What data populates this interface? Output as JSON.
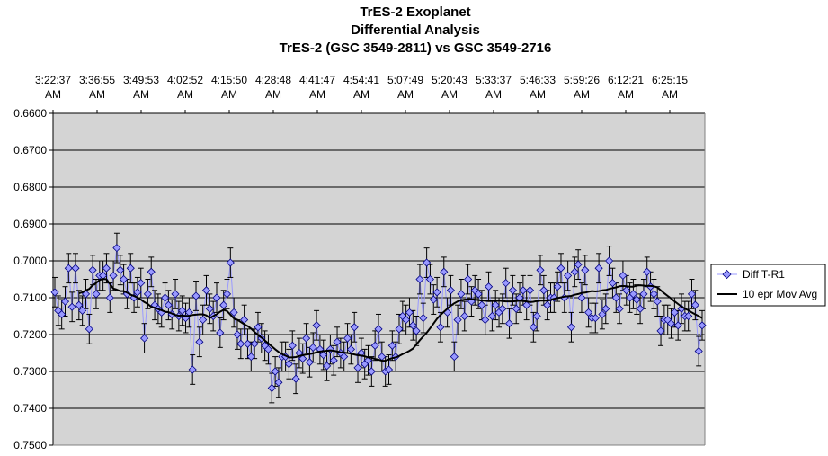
{
  "chart_data": {
    "type": "line",
    "title": [
      "TrES-2  Exoplanet",
      "Differential Analysis",
      "TrES-2 (GSC 3549-2811) vs GSC 3549-2716"
    ],
    "xlabel": "",
    "ylabel": "",
    "x_ticks": [
      [
        "3:22:37",
        "AM"
      ],
      [
        "3:36:55",
        "AM"
      ],
      [
        "3:49:53",
        "AM"
      ],
      [
        "4:02:52",
        "AM"
      ],
      [
        "4:15:50",
        "AM"
      ],
      [
        "4:28:48",
        "AM"
      ],
      [
        "4:41:47",
        "AM"
      ],
      [
        "4:54:41",
        "AM"
      ],
      [
        "5:07:49",
        "AM"
      ],
      [
        "5:20:43",
        "AM"
      ],
      [
        "5:33:37",
        "AM"
      ],
      [
        "5:46:33",
        "AM"
      ],
      [
        "5:59:26",
        "AM"
      ],
      [
        "6:12:21",
        "AM"
      ],
      [
        "6:25:15",
        "AM"
      ]
    ],
    "y_ticks": [
      "0.6600",
      "0.6700",
      "0.6800",
      "0.6900",
      "0.7000",
      "0.7100",
      "0.7200",
      "0.7300",
      "0.7400",
      "0.7500"
    ],
    "ylim": [
      0.66,
      0.75
    ],
    "y_inverted": true,
    "grid": true,
    "legend_position": "right",
    "error_bar": 0.004,
    "series": [
      {
        "name": "Diff T-R1",
        "marker": "diamond",
        "color": "#9999ff",
        "values": [
          0.7085,
          0.7135,
          0.7145,
          0.711,
          0.702,
          0.7125,
          0.702,
          0.712,
          0.7135,
          0.709,
          0.7185,
          0.7025,
          0.709,
          0.704,
          0.704,
          0.702,
          0.71,
          0.704,
          0.6965,
          0.7025,
          0.705,
          0.709,
          0.702,
          0.71,
          0.7085,
          0.706,
          0.721,
          0.709,
          0.703,
          0.712,
          0.713,
          0.714,
          0.71,
          0.712,
          0.7145,
          0.709,
          0.715,
          0.7135,
          0.7155,
          0.714,
          0.7295,
          0.7095,
          0.722,
          0.716,
          0.708,
          0.713,
          0.715,
          0.71,
          0.7195,
          0.712,
          0.709,
          0.7005,
          0.714,
          0.72,
          0.7225,
          0.716,
          0.7225,
          0.726,
          0.7225,
          0.718,
          0.721,
          0.723,
          0.724,
          0.7345,
          0.73,
          0.733,
          0.726,
          0.726,
          0.728,
          0.723,
          0.732,
          0.725,
          0.7265,
          0.721,
          0.7275,
          0.7235,
          0.7175,
          0.724,
          0.7255,
          0.7285,
          0.724,
          0.727,
          0.722,
          0.725,
          0.726,
          0.721,
          0.724,
          0.718,
          0.729,
          0.725,
          0.728,
          0.727,
          0.73,
          0.723,
          0.7185,
          0.726,
          0.73,
          0.7295,
          0.723,
          0.726,
          0.7185,
          0.715,
          0.716,
          0.714,
          0.7175,
          0.719,
          0.705,
          0.7155,
          0.7005,
          0.705,
          0.7105,
          0.7085,
          0.718,
          0.703,
          0.714,
          0.708,
          0.726,
          0.716,
          0.709,
          0.715,
          0.705,
          0.711,
          0.708,
          0.709,
          0.712,
          0.716,
          0.707,
          0.715,
          0.712,
          0.714,
          0.713,
          0.706,
          0.717,
          0.708,
          0.713,
          0.71,
          0.708,
          0.712,
          0.708,
          0.718,
          0.715,
          0.7025,
          0.708,
          0.712,
          0.71,
          0.71,
          0.707,
          0.702,
          0.71,
          0.704,
          0.718,
          0.703,
          0.701,
          0.71,
          0.7025,
          0.714,
          0.7155,
          0.7155,
          0.702,
          0.7145,
          0.713,
          0.7,
          0.706,
          0.71,
          0.713,
          0.704,
          0.708,
          0.71,
          0.709,
          0.7105,
          0.713,
          0.709,
          0.703,
          0.707,
          0.709,
          0.711,
          0.719,
          0.716,
          0.716,
          0.717,
          0.714,
          0.7175,
          0.713,
          0.715,
          0.715,
          0.709,
          0.712,
          0.7245,
          0.7175
        ]
      },
      {
        "name": "10 epr Mov Avg",
        "color": "#000000",
        "values": [
          0.7088,
          0.7085,
          0.708,
          0.7076,
          0.7066,
          0.706,
          0.7052,
          0.7049,
          0.705,
          0.7063,
          0.7075,
          0.7078,
          0.7082,
          0.7082,
          0.7086,
          0.7092,
          0.7095,
          0.71,
          0.7105,
          0.7112,
          0.7117,
          0.7125,
          0.7127,
          0.7131,
          0.7134,
          0.7138,
          0.7139,
          0.7143,
          0.7147,
          0.7149,
          0.7148,
          0.715,
          0.7149,
          0.7147,
          0.7146,
          0.7145,
          0.7145,
          0.7148,
          0.7155,
          0.715,
          0.7145,
          0.7138,
          0.7133,
          0.7136,
          0.7146,
          0.7156,
          0.716,
          0.7166,
          0.7172,
          0.7177,
          0.7184,
          0.7193,
          0.7201,
          0.7208,
          0.7216,
          0.7224,
          0.7232,
          0.724,
          0.7247,
          0.7253,
          0.7257,
          0.7262,
          0.7262,
          0.7261,
          0.7258,
          0.7256,
          0.7254,
          0.7253,
          0.7251,
          0.7248,
          0.7246,
          0.7245,
          0.7244,
          0.7243,
          0.7244,
          0.7246,
          0.7248,
          0.7249,
          0.725,
          0.7252,
          0.7254,
          0.7256,
          0.7257,
          0.7259,
          0.7262,
          0.7263,
          0.7266,
          0.7268,
          0.7271,
          0.7271,
          0.7267,
          0.7264,
          0.7262,
          0.7258,
          0.7253,
          0.7249,
          0.7244,
          0.7238,
          0.7227,
          0.7215,
          0.7205,
          0.7195,
          0.7183,
          0.717,
          0.7157,
          0.7147,
          0.7138,
          0.713,
          0.7122,
          0.7115,
          0.711,
          0.7107,
          0.7105,
          0.7104,
          0.7104,
          0.7105,
          0.7106,
          0.7108,
          0.7108,
          0.7109,
          0.7108,
          0.7109,
          0.7108,
          0.7109,
          0.711,
          0.711,
          0.711,
          0.7109,
          0.7108,
          0.7109,
          0.711,
          0.7112,
          0.7111,
          0.7109,
          0.7108,
          0.7108,
          0.7108,
          0.7106,
          0.7103,
          0.7101,
          0.7099,
          0.7097,
          0.7096,
          0.7095,
          0.7092,
          0.709,
          0.7087,
          0.7086,
          0.7084,
          0.7082,
          0.7083,
          0.7082,
          0.708,
          0.7079,
          0.7076,
          0.7074,
          0.7072,
          0.7069,
          0.7068,
          0.7069,
          0.707,
          0.707,
          0.7067,
          0.7066,
          0.7067,
          0.7068,
          0.7068,
          0.7069,
          0.7072,
          0.708,
          0.7088,
          0.7095,
          0.7102,
          0.711,
          0.7117,
          0.7124,
          0.713,
          0.7134,
          0.714,
          0.7145,
          0.715,
          0.7155
        ]
      }
    ]
  }
}
